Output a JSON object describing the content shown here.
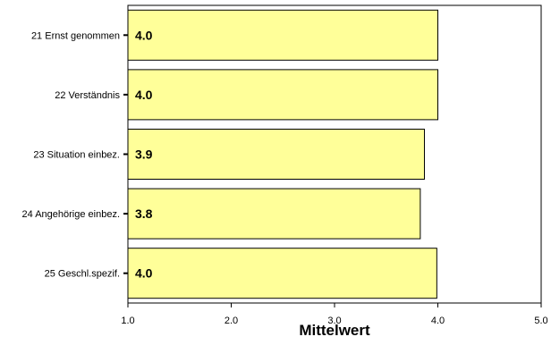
{
  "chart_data": {
    "type": "bar",
    "orientation": "horizontal",
    "categories": [
      "21 Ernst genommen",
      "22 Verständnis",
      "23 Situation einbez.",
      "24 Angehörige einbez.",
      "25 Geschl.spezif."
    ],
    "values": [
      4.0,
      4.0,
      3.87,
      3.83,
      3.99
    ],
    "value_labels": [
      "4.0",
      "4.0",
      "3.9",
      "3.8",
      "4.0"
    ],
    "xlim": [
      1.0,
      5.0
    ],
    "x_ticks": [
      "1.0",
      "2.0",
      "3.0",
      "4.0",
      "5.0"
    ],
    "xlabel": "Mittelwert",
    "ylabel": "",
    "grid": false,
    "colors": {
      "bar_fill": "#ffff99",
      "bar_stroke": "#000000",
      "frame": "#000000"
    }
  }
}
